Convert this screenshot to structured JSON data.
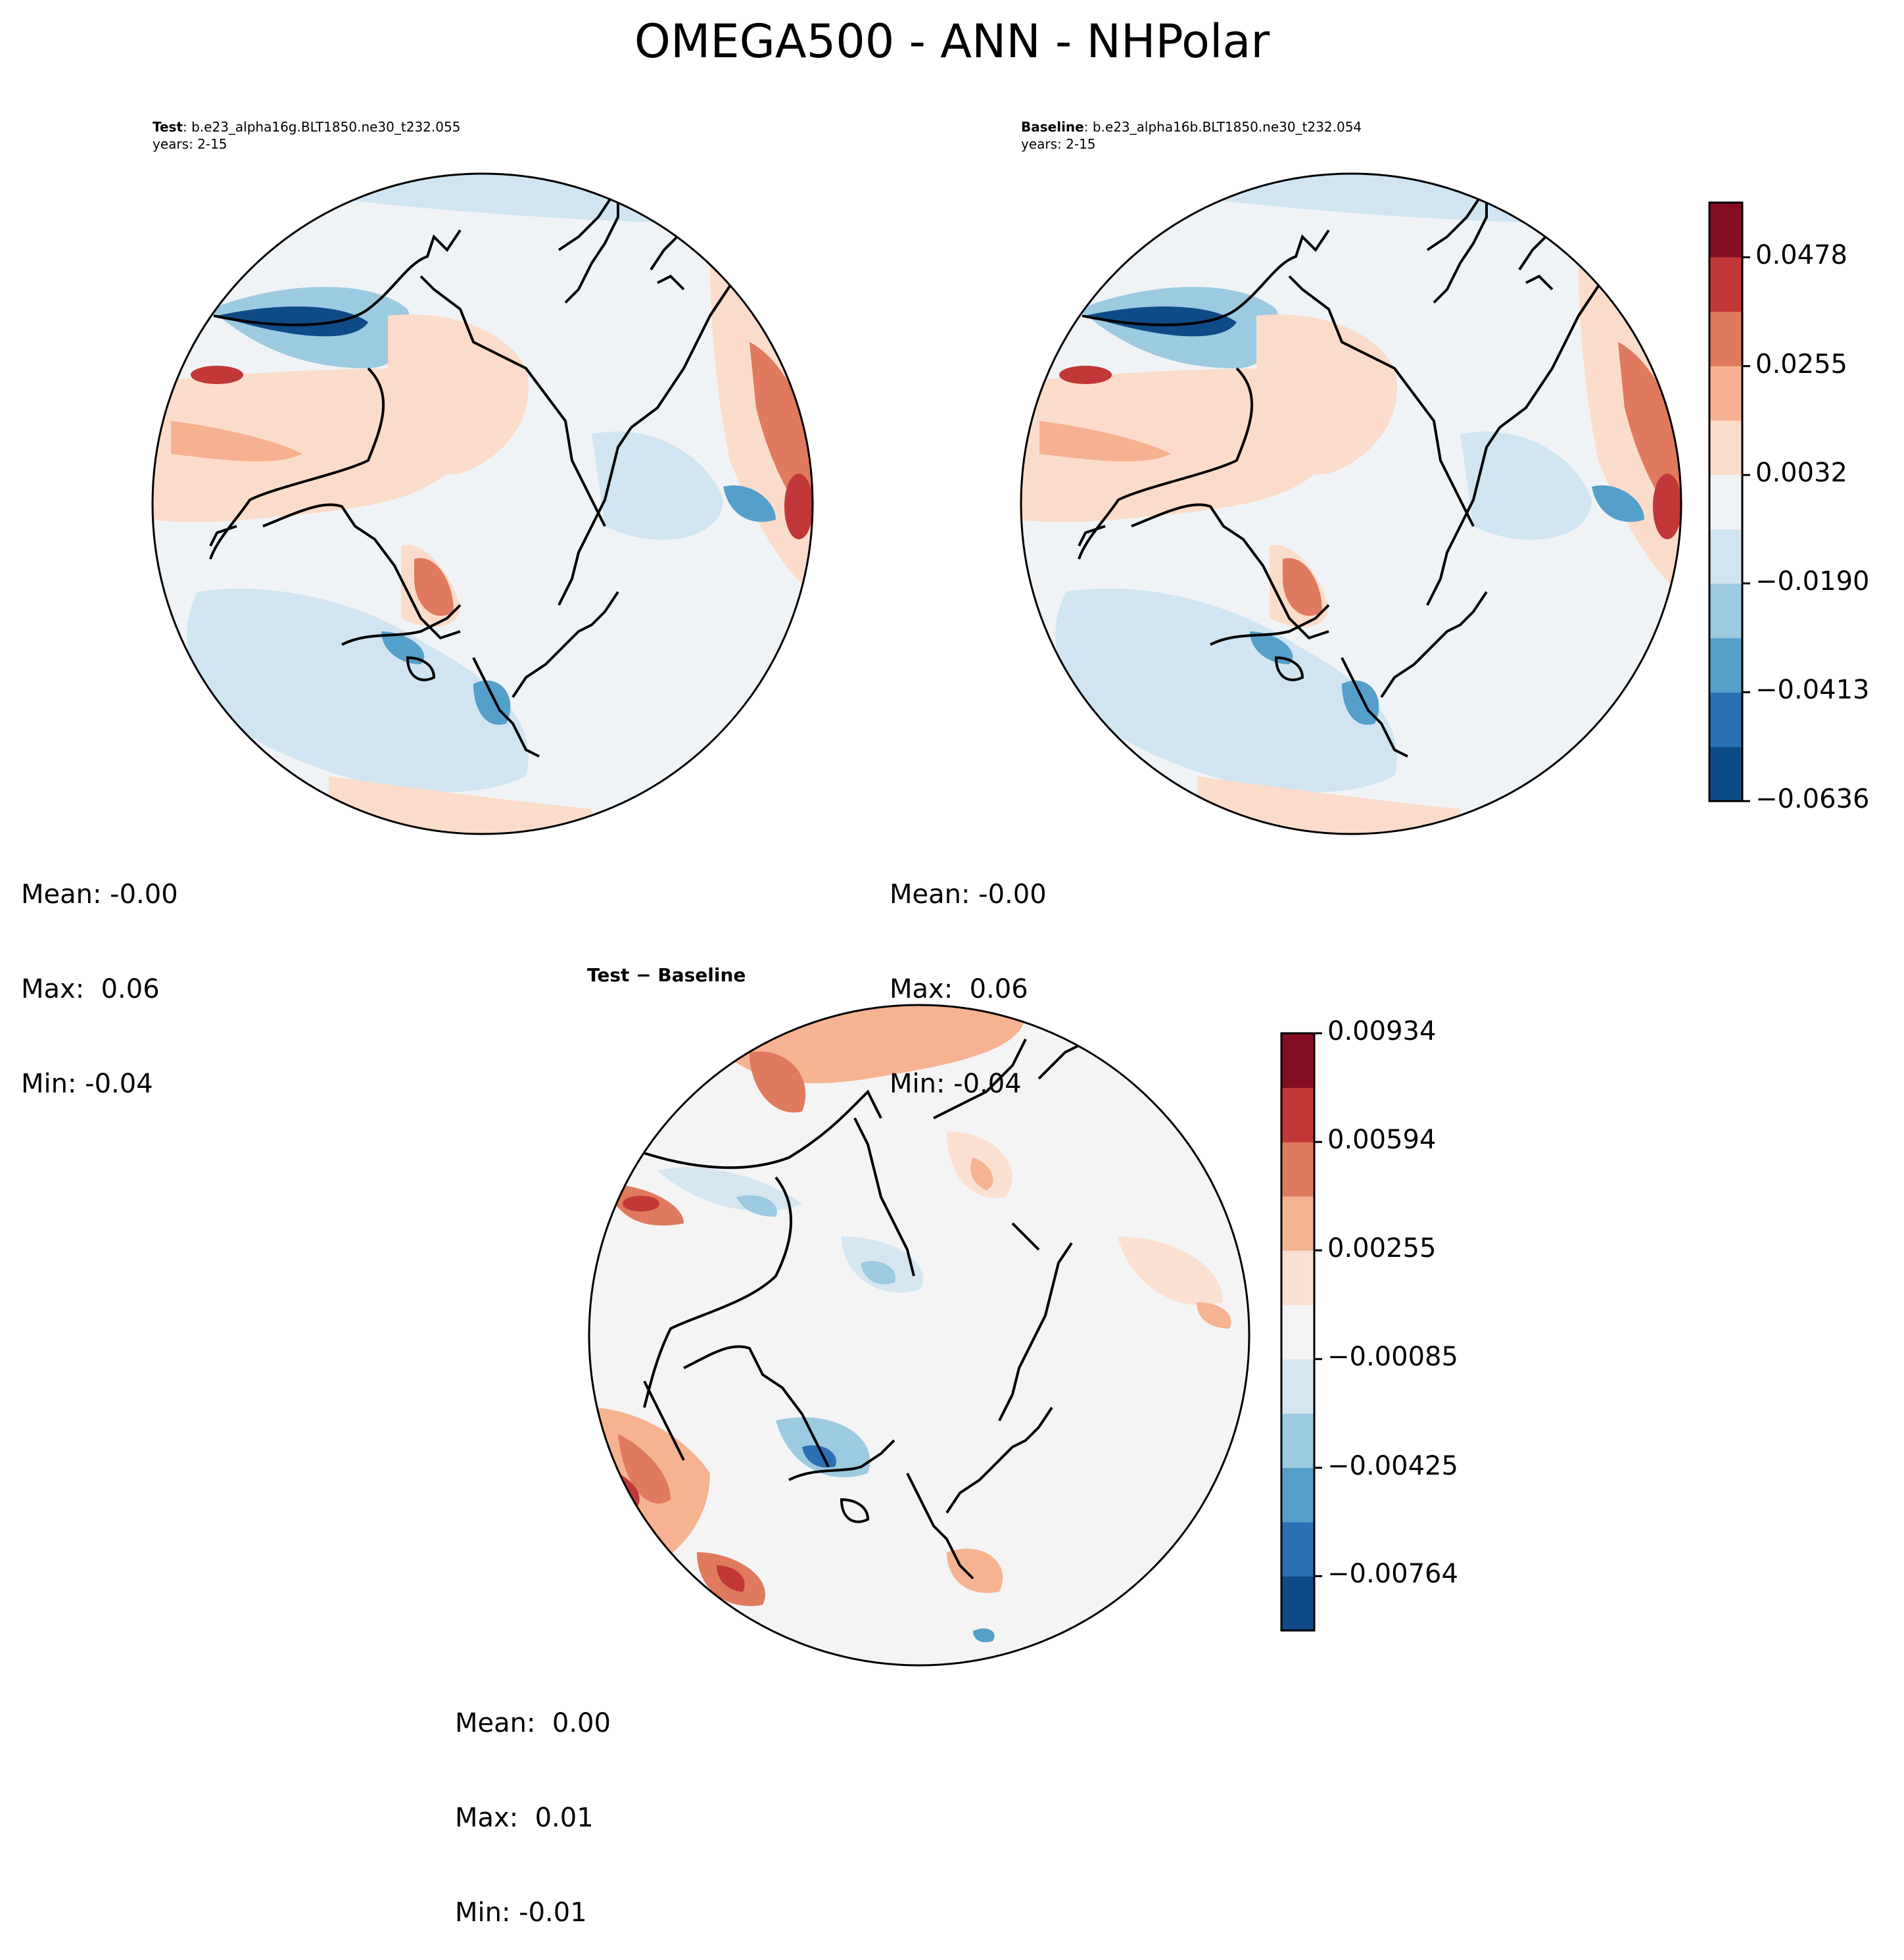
{
  "figure": {
    "title": "OMEGA500 - ANN - NHPolar"
  },
  "palette": {
    "main": [
      "#0f4b86",
      "#2a70b2",
      "#559fcb",
      "#9ccae1",
      "#d0e5f1",
      "#f0f3f6",
      "#fbdcca",
      "#f6b190",
      "#e07a5f",
      "#c23838",
      "#860e23"
    ],
    "diff": [
      "#0f4b86",
      "#2a70b2",
      "#559fcb",
      "#9ccae1",
      "#d5e6f1",
      "#f4f4f5",
      "#fbe0d2",
      "#f6b391",
      "#e07a5f",
      "#c23838",
      "#860e23"
    ]
  },
  "panels": {
    "test": {
      "label_bold": "Test",
      "label_rest": ": b.e23_alpha16g.BLT1850.ne30_t232.055",
      "years": "years: 2-15",
      "mean": "Mean: -0.00",
      "max": "Max:  0.06",
      "min": "Min: -0.04"
    },
    "baseline": {
      "label_bold": "Baseline",
      "label_rest": ": b.e23_alpha16b.BLT1850.ne30_t232.054",
      "years": "years: 2-15",
      "mean": "Mean: -0.00",
      "max": "Max:  0.06",
      "min": "Min: -0.04"
    },
    "diff": {
      "label_bold": "Test − Baseline",
      "mean": "Mean:  0.00",
      "max": "Max:  0.01",
      "min": "Min: -0.01"
    }
  },
  "chart_data": [
    {
      "type": "heatmap",
      "name": "test",
      "projection": "north-polar-stereographic",
      "colorbar_ticks": [
        "0.0478",
        "0.0255",
        "0.0032",
        "−0.0190",
        "−0.0413",
        "−0.0636"
      ],
      "colorbar_range": [
        -0.0636,
        0.059
      ],
      "levels": 11,
      "mean": -0.0,
      "max": 0.06,
      "min": -0.04
    },
    {
      "type": "heatmap",
      "name": "baseline",
      "projection": "north-polar-stereographic",
      "colorbar_ticks": [
        "0.0478",
        "0.0255",
        "0.0032",
        "−0.0190",
        "−0.0413",
        "−0.0636"
      ],
      "colorbar_range": [
        -0.0636,
        0.059
      ],
      "levels": 11,
      "mean": -0.0,
      "max": 0.06,
      "min": -0.04
    },
    {
      "type": "heatmap",
      "name": "test-minus-baseline",
      "projection": "north-polar-stereographic",
      "colorbar_ticks": [
        "0.00934",
        "0.00594",
        "0.00255",
        "−0.00085",
        "−0.00425",
        "−0.00764"
      ],
      "colorbar_range": [
        -0.00934,
        0.00934
      ],
      "levels": 11,
      "mean": 0.0,
      "max": 0.01,
      "min": -0.01
    }
  ]
}
